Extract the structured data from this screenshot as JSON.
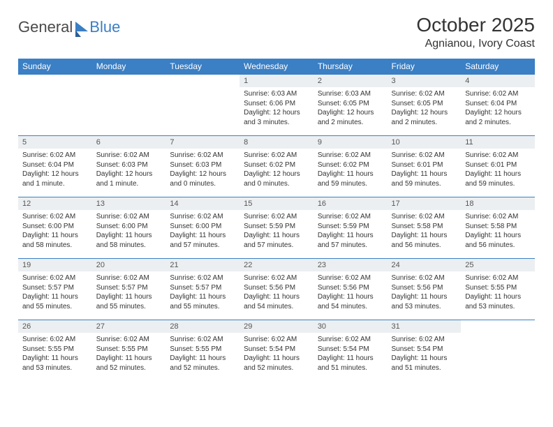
{
  "logo": {
    "part1": "General",
    "part2": "Blue"
  },
  "title": "October 2025",
  "location": "Agnianou, Ivory Coast",
  "headers": [
    "Sunday",
    "Monday",
    "Tuesday",
    "Wednesday",
    "Thursday",
    "Friday",
    "Saturday"
  ],
  "colors": {
    "header_bg": "#3b7fc4",
    "header_text": "#ffffff",
    "daynum_bg": "#eceff1",
    "border": "#3b7fc4",
    "text": "#333333",
    "logo_gray": "#4a4a4a",
    "logo_blue": "#3b7fc4"
  },
  "weeks": [
    [
      {
        "n": "",
        "sr": "",
        "ss": "",
        "dl": ""
      },
      {
        "n": "",
        "sr": "",
        "ss": "",
        "dl": ""
      },
      {
        "n": "",
        "sr": "",
        "ss": "",
        "dl": ""
      },
      {
        "n": "1",
        "sr": "Sunrise: 6:03 AM",
        "ss": "Sunset: 6:06 PM",
        "dl": "Daylight: 12 hours and 3 minutes."
      },
      {
        "n": "2",
        "sr": "Sunrise: 6:03 AM",
        "ss": "Sunset: 6:05 PM",
        "dl": "Daylight: 12 hours and 2 minutes."
      },
      {
        "n": "3",
        "sr": "Sunrise: 6:02 AM",
        "ss": "Sunset: 6:05 PM",
        "dl": "Daylight: 12 hours and 2 minutes."
      },
      {
        "n": "4",
        "sr": "Sunrise: 6:02 AM",
        "ss": "Sunset: 6:04 PM",
        "dl": "Daylight: 12 hours and 2 minutes."
      }
    ],
    [
      {
        "n": "5",
        "sr": "Sunrise: 6:02 AM",
        "ss": "Sunset: 6:04 PM",
        "dl": "Daylight: 12 hours and 1 minute."
      },
      {
        "n": "6",
        "sr": "Sunrise: 6:02 AM",
        "ss": "Sunset: 6:03 PM",
        "dl": "Daylight: 12 hours and 1 minute."
      },
      {
        "n": "7",
        "sr": "Sunrise: 6:02 AM",
        "ss": "Sunset: 6:03 PM",
        "dl": "Daylight: 12 hours and 0 minutes."
      },
      {
        "n": "8",
        "sr": "Sunrise: 6:02 AM",
        "ss": "Sunset: 6:02 PM",
        "dl": "Daylight: 12 hours and 0 minutes."
      },
      {
        "n": "9",
        "sr": "Sunrise: 6:02 AM",
        "ss": "Sunset: 6:02 PM",
        "dl": "Daylight: 11 hours and 59 minutes."
      },
      {
        "n": "10",
        "sr": "Sunrise: 6:02 AM",
        "ss": "Sunset: 6:01 PM",
        "dl": "Daylight: 11 hours and 59 minutes."
      },
      {
        "n": "11",
        "sr": "Sunrise: 6:02 AM",
        "ss": "Sunset: 6:01 PM",
        "dl": "Daylight: 11 hours and 59 minutes."
      }
    ],
    [
      {
        "n": "12",
        "sr": "Sunrise: 6:02 AM",
        "ss": "Sunset: 6:00 PM",
        "dl": "Daylight: 11 hours and 58 minutes."
      },
      {
        "n": "13",
        "sr": "Sunrise: 6:02 AM",
        "ss": "Sunset: 6:00 PM",
        "dl": "Daylight: 11 hours and 58 minutes."
      },
      {
        "n": "14",
        "sr": "Sunrise: 6:02 AM",
        "ss": "Sunset: 6:00 PM",
        "dl": "Daylight: 11 hours and 57 minutes."
      },
      {
        "n": "15",
        "sr": "Sunrise: 6:02 AM",
        "ss": "Sunset: 5:59 PM",
        "dl": "Daylight: 11 hours and 57 minutes."
      },
      {
        "n": "16",
        "sr": "Sunrise: 6:02 AM",
        "ss": "Sunset: 5:59 PM",
        "dl": "Daylight: 11 hours and 57 minutes."
      },
      {
        "n": "17",
        "sr": "Sunrise: 6:02 AM",
        "ss": "Sunset: 5:58 PM",
        "dl": "Daylight: 11 hours and 56 minutes."
      },
      {
        "n": "18",
        "sr": "Sunrise: 6:02 AM",
        "ss": "Sunset: 5:58 PM",
        "dl": "Daylight: 11 hours and 56 minutes."
      }
    ],
    [
      {
        "n": "19",
        "sr": "Sunrise: 6:02 AM",
        "ss": "Sunset: 5:57 PM",
        "dl": "Daylight: 11 hours and 55 minutes."
      },
      {
        "n": "20",
        "sr": "Sunrise: 6:02 AM",
        "ss": "Sunset: 5:57 PM",
        "dl": "Daylight: 11 hours and 55 minutes."
      },
      {
        "n": "21",
        "sr": "Sunrise: 6:02 AM",
        "ss": "Sunset: 5:57 PM",
        "dl": "Daylight: 11 hours and 55 minutes."
      },
      {
        "n": "22",
        "sr": "Sunrise: 6:02 AM",
        "ss": "Sunset: 5:56 PM",
        "dl": "Daylight: 11 hours and 54 minutes."
      },
      {
        "n": "23",
        "sr": "Sunrise: 6:02 AM",
        "ss": "Sunset: 5:56 PM",
        "dl": "Daylight: 11 hours and 54 minutes."
      },
      {
        "n": "24",
        "sr": "Sunrise: 6:02 AM",
        "ss": "Sunset: 5:56 PM",
        "dl": "Daylight: 11 hours and 53 minutes."
      },
      {
        "n": "25",
        "sr": "Sunrise: 6:02 AM",
        "ss": "Sunset: 5:55 PM",
        "dl": "Daylight: 11 hours and 53 minutes."
      }
    ],
    [
      {
        "n": "26",
        "sr": "Sunrise: 6:02 AM",
        "ss": "Sunset: 5:55 PM",
        "dl": "Daylight: 11 hours and 53 minutes."
      },
      {
        "n": "27",
        "sr": "Sunrise: 6:02 AM",
        "ss": "Sunset: 5:55 PM",
        "dl": "Daylight: 11 hours and 52 minutes."
      },
      {
        "n": "28",
        "sr": "Sunrise: 6:02 AM",
        "ss": "Sunset: 5:55 PM",
        "dl": "Daylight: 11 hours and 52 minutes."
      },
      {
        "n": "29",
        "sr": "Sunrise: 6:02 AM",
        "ss": "Sunset: 5:54 PM",
        "dl": "Daylight: 11 hours and 52 minutes."
      },
      {
        "n": "30",
        "sr": "Sunrise: 6:02 AM",
        "ss": "Sunset: 5:54 PM",
        "dl": "Daylight: 11 hours and 51 minutes."
      },
      {
        "n": "31",
        "sr": "Sunrise: 6:02 AM",
        "ss": "Sunset: 5:54 PM",
        "dl": "Daylight: 11 hours and 51 minutes."
      },
      {
        "n": "",
        "sr": "",
        "ss": "",
        "dl": ""
      }
    ]
  ]
}
